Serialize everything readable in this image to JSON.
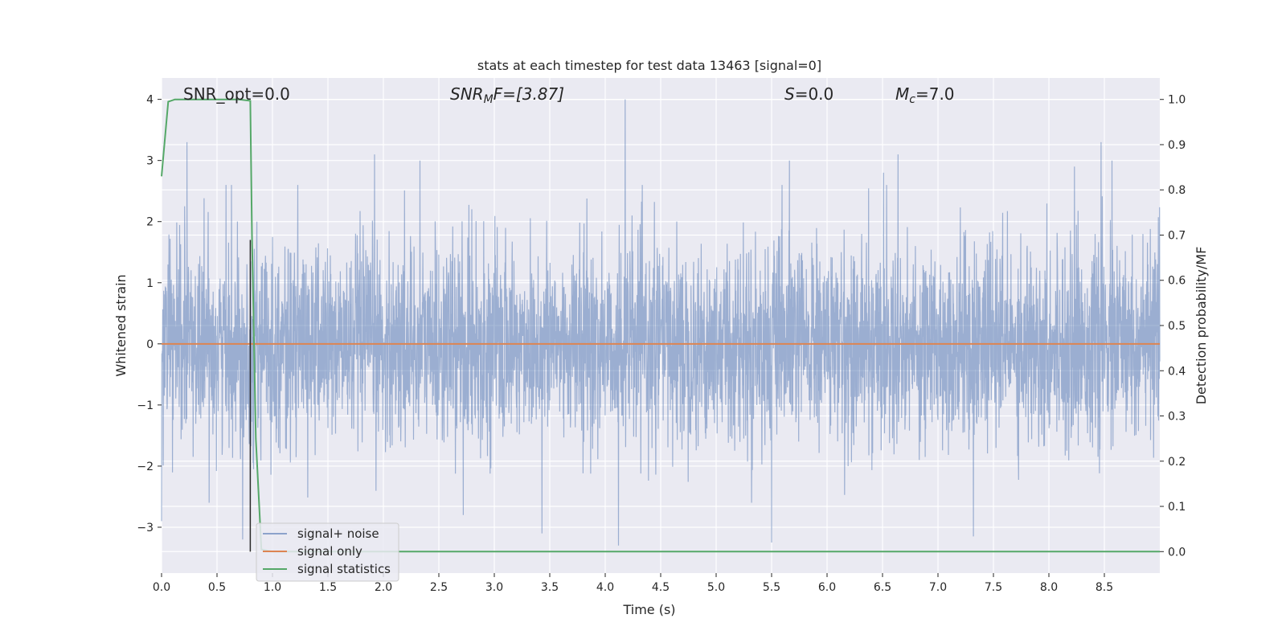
{
  "chart_data": {
    "type": "line",
    "title": "stats at each timestep for test data 13463 [signal=0]",
    "xlabel": "Time (s)",
    "ylabel": "Whitened strain",
    "y2label": "Detection probability/MF",
    "xlim": [
      0.0,
      9.0
    ],
    "ylim": [
      -3.75,
      4.35
    ],
    "y2lim": [
      -0.0475,
      1.0475
    ],
    "x_ticks": [
      "0.0",
      "0.5",
      "1.0",
      "1.5",
      "2.0",
      "2.5",
      "3.0",
      "3.5",
      "4.0",
      "4.5",
      "5.0",
      "5.5",
      "6.0",
      "6.5",
      "7.0",
      "7.5",
      "8.0",
      "8.5"
    ],
    "y_ticks": [
      "4",
      "3",
      "2",
      "1",
      "0",
      "−1",
      "−2",
      "−3"
    ],
    "y2_ticks": [
      "1.0",
      "0.9",
      "0.8",
      "0.7",
      "0.6",
      "0.5",
      "0.4",
      "0.3",
      "0.2",
      "0.1",
      "0.0"
    ],
    "grid": true,
    "legend_position": "lower-left",
    "annotations": {
      "snr_opt": "SNR_opt=0.0",
      "snr_mf_base": "SNR",
      "snr_mf_sub": "M",
      "snr_mf_rest": "F=[3.87]",
      "s_var": "S",
      "s_rest": "=0.0",
      "mc_var": "M",
      "mc_sub": "c",
      "mc_rest": "=7.0"
    },
    "series": [
      {
        "name": "signal+ noise",
        "color": "#4c72b0",
        "axis": "left",
        "envelope_notes": "dense noise, mostly within [-1.9, 1.9], peaks up to 4.0 near t=4.18 and down to -3.3 near t=4.12",
        "peaks_x": [
          0.0,
          0.23,
          0.63,
          0.73,
          0.86,
          1.92,
          2.33,
          2.72,
          3.43,
          4.12,
          4.18,
          5.5,
          5.66,
          6.51,
          6.64,
          7.32,
          8.23,
          8.47,
          8.57
        ],
        "peaks_y": [
          -2.9,
          3.3,
          2.6,
          -3.2,
          2.0,
          3.1,
          3.0,
          -2.8,
          -3.1,
          -3.3,
          4.0,
          -3.25,
          3.0,
          2.8,
          3.1,
          -3.15,
          2.9,
          3.3,
          3.0
        ]
      },
      {
        "name": "signal only",
        "color": "#dd8452",
        "axis": "left",
        "x": [
          0.0,
          9.0
        ],
        "y": [
          0.0,
          0.0
        ]
      },
      {
        "name": "signal statistics",
        "color": "#55a868",
        "axis": "right",
        "x": [
          0.0,
          0.06,
          0.12,
          0.3,
          0.5,
          0.7,
          0.8,
          0.815,
          0.85,
          0.9,
          1.0,
          9.0
        ],
        "y": [
          0.83,
          0.995,
          1.0,
          1.0,
          1.0,
          1.0,
          0.997,
          0.7,
          0.25,
          0.005,
          0.0,
          0.0
        ]
      }
    ],
    "marker_x": 0.8
  }
}
